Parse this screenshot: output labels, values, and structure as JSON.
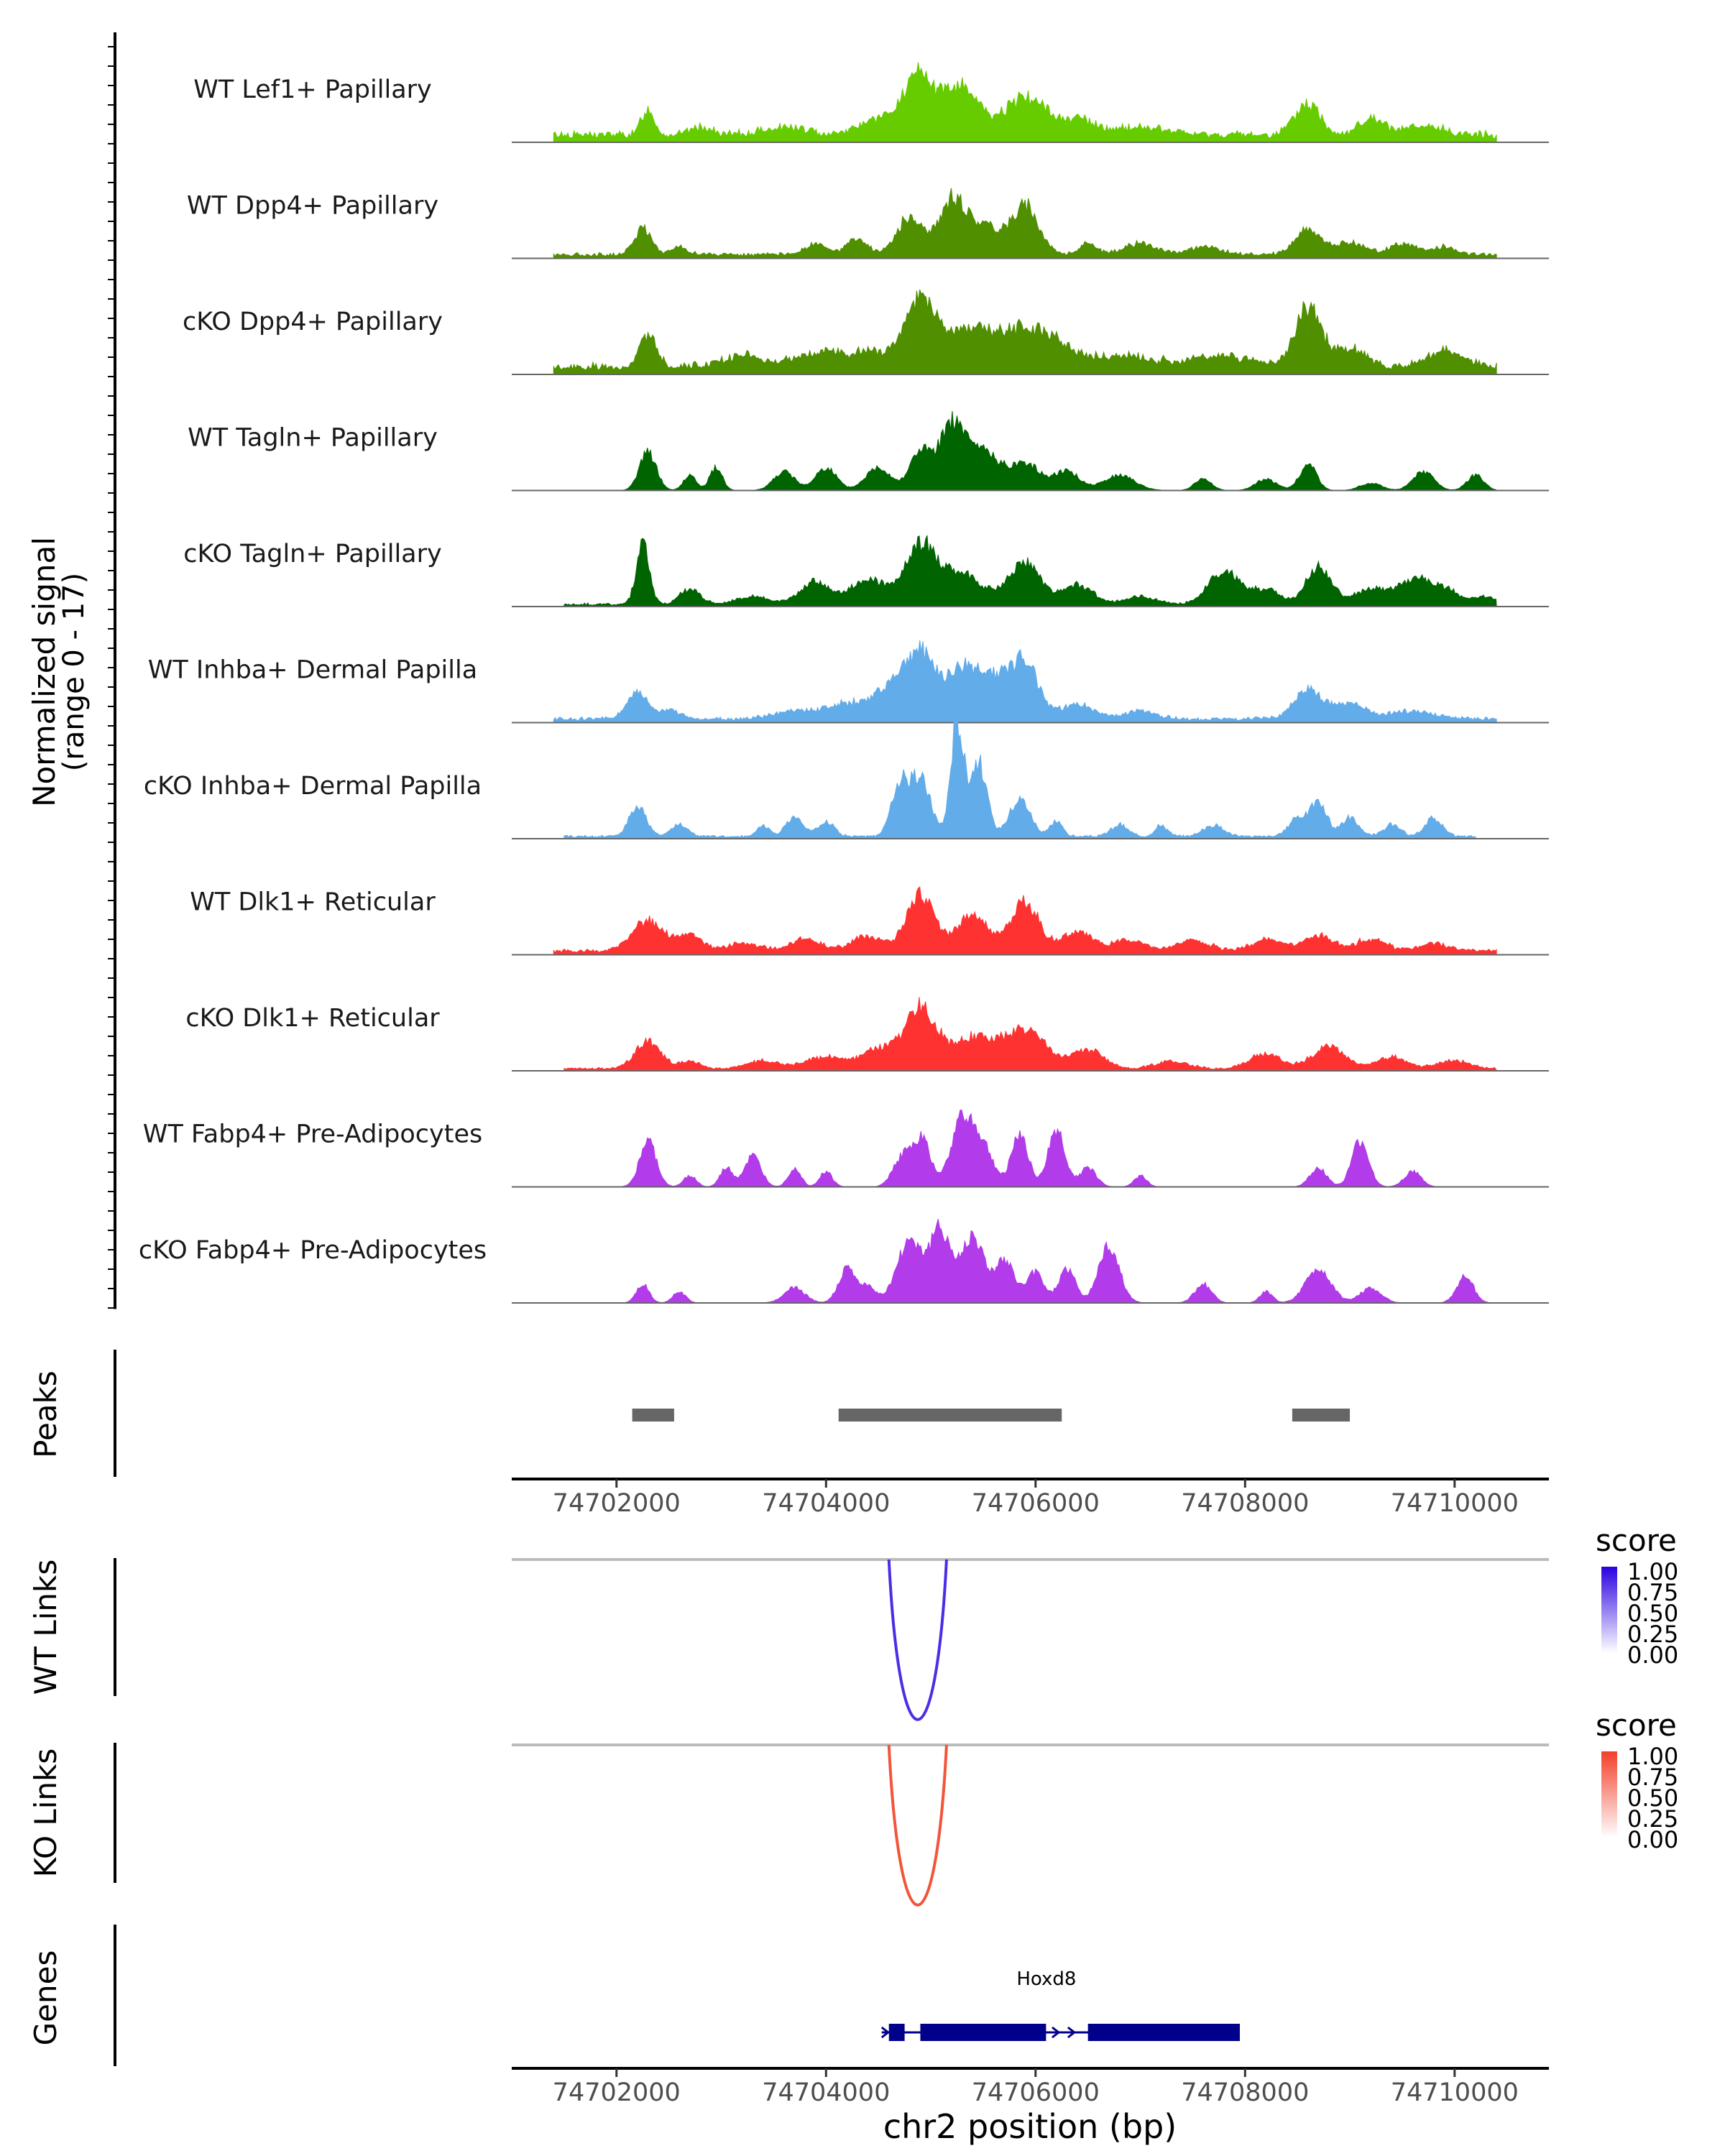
{
  "chart_data": {
    "type": "genome-coverage-plot",
    "region": "chr2",
    "xlim": [
      74701000,
      74710900
    ],
    "coverage": {
      "ylabel_line1": "Normalized signal",
      "ylabel_line2": "(range 0 - 17)",
      "ylim": [
        0,
        17
      ],
      "tracks": [
        {
          "name": "WT Lef1+ Papillary",
          "color": "#66CC00",
          "start": 74701400,
          "end": 74710400,
          "base": 1.0,
          "peaks": [
            [
              74702300,
              3.5,
              60
            ],
            [
              74702800,
              1.0,
              100
            ],
            [
              74703600,
              1.0,
              200
            ],
            [
              74704500,
              2.0,
              200
            ],
            [
              74704900,
              7.5,
              150
            ],
            [
              74705300,
              6.5,
              150
            ],
            [
              74705900,
              5.0,
              200
            ],
            [
              74706400,
              2.0,
              150
            ],
            [
              74707000,
              1.0,
              250
            ],
            [
              74708600,
              4.0,
              120
            ],
            [
              74709200,
              2.0,
              120
            ],
            [
              74709700,
              1.0,
              200
            ]
          ]
        },
        {
          "name": "WT Dpp4+ Papillary",
          "color": "#4F8F00",
          "start": 74701400,
          "end": 74710400,
          "base": 0.5,
          "peaks": [
            [
              74702250,
              3.5,
              80
            ],
            [
              74702600,
              1.0,
              80
            ],
            [
              74703900,
              1.5,
              100
            ],
            [
              74704300,
              2.0,
              100
            ],
            [
              74704800,
              5.0,
              120
            ],
            [
              74705200,
              7.0,
              120
            ],
            [
              74705500,
              4.0,
              150
            ],
            [
              74705900,
              6.5,
              130
            ],
            [
              74706500,
              1.5,
              80
            ],
            [
              74707000,
              1.5,
              150
            ],
            [
              74707600,
              1.0,
              150
            ],
            [
              74708600,
              3.5,
              120
            ],
            [
              74709000,
              1.5,
              150
            ],
            [
              74709500,
              1.5,
              120
            ],
            [
              74709900,
              1.0,
              120
            ]
          ]
        },
        {
          "name": "cKO Dpp4+ Papillary",
          "color": "#4F8F00",
          "start": 74701400,
          "end": 74710400,
          "base": 1.0,
          "peaks": [
            [
              74702300,
              4.5,
              80
            ],
            [
              74703200,
              1.5,
              200
            ],
            [
              74703900,
              2.0,
              200
            ],
            [
              74704400,
              2.0,
              200
            ],
            [
              74704900,
              8.5,
              150
            ],
            [
              74705400,
              5.0,
              250
            ],
            [
              74706000,
              5.0,
              250
            ],
            [
              74706800,
              1.5,
              300
            ],
            [
              74707800,
              1.5,
              300
            ],
            [
              74708600,
              8.0,
              120
            ],
            [
              74709000,
              2.5,
              150
            ],
            [
              74709900,
              2.0,
              200
            ]
          ]
        },
        {
          "name": "WT Tagln+ Papillary",
          "color": "#006400",
          "start": 74701500,
          "end": 74710400,
          "base": 0.0,
          "peaks": [
            [
              74702300,
              5.0,
              80
            ],
            [
              74702700,
              2.0,
              60
            ],
            [
              74702950,
              3.0,
              60
            ],
            [
              74703600,
              2.5,
              100
            ],
            [
              74704000,
              3.0,
              100
            ],
            [
              74704500,
              3.0,
              120
            ],
            [
              74704900,
              5.0,
              100
            ],
            [
              74705200,
              8.5,
              120
            ],
            [
              74705500,
              5.0,
              150
            ],
            [
              74705900,
              3.5,
              150
            ],
            [
              74706300,
              2.5,
              120
            ],
            [
              74706800,
              2.0,
              150
            ],
            [
              74707600,
              1.5,
              80
            ],
            [
              74708200,
              1.5,
              100
            ],
            [
              74708600,
              3.5,
              80
            ],
            [
              74709200,
              1.0,
              100
            ],
            [
              74709700,
              2.5,
              100
            ],
            [
              74710200,
              2.0,
              80
            ]
          ]
        },
        {
          "name": "cKO Tagln+ Papillary",
          "color": "#006400",
          "start": 74701500,
          "end": 74710400,
          "base": 0.3,
          "peaks": [
            [
              74702250,
              8.0,
              60
            ],
            [
              74702700,
              2.0,
              100
            ],
            [
              74703300,
              1.0,
              150
            ],
            [
              74703900,
              3.0,
              150
            ],
            [
              74704400,
              3.5,
              150
            ],
            [
              74704900,
              7.5,
              150
            ],
            [
              74705300,
              4.0,
              200
            ],
            [
              74705900,
              5.5,
              150
            ],
            [
              74706400,
              2.5,
              150
            ],
            [
              74707000,
              1.0,
              150
            ],
            [
              74707800,
              4.5,
              150
            ],
            [
              74708200,
              2.0,
              120
            ],
            [
              74708700,
              5.0,
              120
            ],
            [
              74709200,
              2.0,
              150
            ],
            [
              74709600,
              3.0,
              150
            ],
            [
              74709900,
              2.0,
              150
            ],
            [
              74710300,
              1.0,
              100
            ]
          ]
        },
        {
          "name": "WT Inhba+ Dermal Papilla",
          "color": "#62ACEA",
          "start": 74701400,
          "end": 74710400,
          "base": 0.5,
          "peaks": [
            [
              74702200,
              3.5,
              100
            ],
            [
              74702500,
              1.0,
              120
            ],
            [
              74703700,
              1.0,
              200
            ],
            [
              74704200,
              2.0,
              200
            ],
            [
              74704600,
              3.5,
              150
            ],
            [
              74704900,
              8.5,
              150
            ],
            [
              74705300,
              6.0,
              150
            ],
            [
              74705600,
              5.0,
              150
            ],
            [
              74705900,
              7.5,
              130
            ],
            [
              74706400,
              2.0,
              150
            ],
            [
              74707000,
              1.0,
              150
            ],
            [
              74708600,
              4.0,
              130
            ],
            [
              74709000,
              2.0,
              150
            ],
            [
              74709600,
              1.0,
              200
            ]
          ]
        },
        {
          "name": "cKO Inhba+ Dermal Papilla",
          "color": "#62ACEA",
          "start": 74701500,
          "end": 74710200,
          "base": 0.3,
          "peaks": [
            [
              74702200,
              4.0,
              80
            ],
            [
              74702600,
              1.5,
              80
            ],
            [
              74703400,
              1.5,
              60
            ],
            [
              74703700,
              2.5,
              80
            ],
            [
              74704000,
              2.0,
              80
            ],
            [
              74704700,
              6.5,
              80
            ],
            [
              74704900,
              7.5,
              100
            ],
            [
              74705250,
              15.0,
              60
            ],
            [
              74705450,
              10.0,
              80
            ],
            [
              74705850,
              5.0,
              100
            ],
            [
              74706200,
              2.0,
              60
            ],
            [
              74706800,
              1.5,
              80
            ],
            [
              74707200,
              1.5,
              60
            ],
            [
              74707700,
              1.5,
              100
            ],
            [
              74708500,
              2.5,
              80
            ],
            [
              74708700,
              4.5,
              80
            ],
            [
              74709000,
              2.5,
              80
            ],
            [
              74709400,
              1.5,
              80
            ],
            [
              74709800,
              2.5,
              80
            ]
          ]
        },
        {
          "name": "WT Dlk1+ Reticular",
          "color": "#FF3232",
          "start": 74701400,
          "end": 74710400,
          "base": 0.5,
          "peaks": [
            [
              74702300,
              4.0,
              150
            ],
            [
              74702700,
              2.0,
              120
            ],
            [
              74703200,
              1.0,
              150
            ],
            [
              74703800,
              1.5,
              150
            ],
            [
              74704400,
              2.0,
              150
            ],
            [
              74704900,
              7.5,
              130
            ],
            [
              74705400,
              5.0,
              150
            ],
            [
              74705900,
              6.5,
              130
            ],
            [
              74706400,
              2.5,
              150
            ],
            [
              74706900,
              1.5,
              150
            ],
            [
              74707500,
              1.5,
              150
            ],
            [
              74708200,
              1.5,
              150
            ],
            [
              74708700,
              2.0,
              150
            ],
            [
              74709200,
              1.5,
              150
            ],
            [
              74709800,
              1.0,
              150
            ]
          ]
        },
        {
          "name": "cKO Dlk1+ Reticular",
          "color": "#FF3232",
          "start": 74701500,
          "end": 74710400,
          "base": 0.3,
          "peaks": [
            [
              74702300,
              3.5,
              120
            ],
            [
              74702700,
              1.0,
              100
            ],
            [
              74703400,
              1.0,
              150
            ],
            [
              74704000,
              1.5,
              200
            ],
            [
              74704500,
              2.5,
              150
            ],
            [
              74704900,
              8.0,
              150
            ],
            [
              74705400,
              4.0,
              200
            ],
            [
              74705900,
              5.0,
              200
            ],
            [
              74706500,
              2.5,
              150
            ],
            [
              74707300,
              1.0,
              150
            ],
            [
              74708200,
              2.0,
              150
            ],
            [
              74708800,
              3.0,
              150
            ],
            [
              74709400,
              1.5,
              150
            ],
            [
              74710000,
              1.0,
              150
            ]
          ]
        },
        {
          "name": "WT Fabp4+ Pre-Adipocytes",
          "color": "#B23BEA",
          "start": 74701500,
          "end": 74710200,
          "base": 0.0,
          "peaks": [
            [
              74702300,
              6.0,
              80
            ],
            [
              74702700,
              1.5,
              60
            ],
            [
              74703050,
              2.5,
              60
            ],
            [
              74703300,
              4.0,
              80
            ],
            [
              74703700,
              2.5,
              60
            ],
            [
              74704000,
              2.0,
              60
            ],
            [
              74704700,
              3.0,
              80
            ],
            [
              74704900,
              6.5,
              100
            ],
            [
              74705300,
              9.0,
              100
            ],
            [
              74705500,
              5.0,
              100
            ],
            [
              74705850,
              7.0,
              80
            ],
            [
              74706200,
              7.5,
              80
            ],
            [
              74706500,
              2.5,
              80
            ],
            [
              74707000,
              1.5,
              60
            ],
            [
              74708700,
              2.5,
              80
            ],
            [
              74709100,
              6.0,
              80
            ],
            [
              74709600,
              2.0,
              80
            ]
          ]
        },
        {
          "name": "cKO Fabp4+ Pre-Adipocytes",
          "color": "#B23BEA",
          "start": 74701500,
          "end": 74710400,
          "base": 0.0,
          "peaks": [
            [
              74702250,
              2.5,
              60
            ],
            [
              74702600,
              1.5,
              60
            ],
            [
              74703700,
              2.0,
              100
            ],
            [
              74704200,
              4.5,
              80
            ],
            [
              74704400,
              2.0,
              80
            ],
            [
              74704800,
              8.5,
              120
            ],
            [
              74705100,
              9.5,
              100
            ],
            [
              74705400,
              9.0,
              100
            ],
            [
              74705700,
              5.5,
              100
            ],
            [
              74706000,
              4.0,
              80
            ],
            [
              74706300,
              4.5,
              80
            ],
            [
              74706700,
              7.5,
              100
            ],
            [
              74707600,
              2.5,
              80
            ],
            [
              74708200,
              1.5,
              60
            ],
            [
              74708700,
              4.5,
              120
            ],
            [
              74709200,
              2.0,
              100
            ],
            [
              74710100,
              3.5,
              80
            ]
          ]
        }
      ]
    },
    "peaks_track": {
      "label": "Peaks",
      "regions": [
        [
          74702150,
          74702550
        ],
        [
          74704120,
          74706250
        ],
        [
          74708450,
          74709000
        ]
      ],
      "color": "#666666"
    },
    "x_axis": {
      "ticks": [
        74702000,
        74704000,
        74706000,
        74708000,
        74710000
      ],
      "tick_labels": [
        "74702000",
        "74704000",
        "74706000",
        "74708000",
        "74710000"
      ],
      "xlabel": "chr2 position (bp)"
    },
    "links": [
      {
        "label": "WT Links",
        "from": 74704600,
        "to": 74705150,
        "score": 1.0,
        "color": "#4A2EE6",
        "legend": {
          "title": "score",
          "ticks": [
            "1.00",
            "0.75",
            "0.50",
            "0.25",
            "0.00"
          ],
          "low_color": "#FFFFFF",
          "high_color": "#2B00E0"
        }
      },
      {
        "label": "KO Links",
        "from": 74704600,
        "to": 74705150,
        "score": 1.0,
        "color": "#F2553A",
        "legend": {
          "title": "score",
          "ticks": [
            "1.00",
            "0.75",
            "0.50",
            "0.25",
            "0.00"
          ],
          "low_color": "#FFFFFF",
          "high_color": "#F23F2A"
        }
      }
    ],
    "genes": {
      "label": "Genes",
      "items": [
        {
          "name": "Hoxd8",
          "start": 74704600,
          "end": 74707950,
          "strand": "+",
          "color": "#00008B",
          "exons": [
            [
              74704600,
              74704750
            ],
            [
              74704900,
              74706100
            ],
            [
              74706500,
              74707950
            ]
          ]
        }
      ]
    }
  }
}
